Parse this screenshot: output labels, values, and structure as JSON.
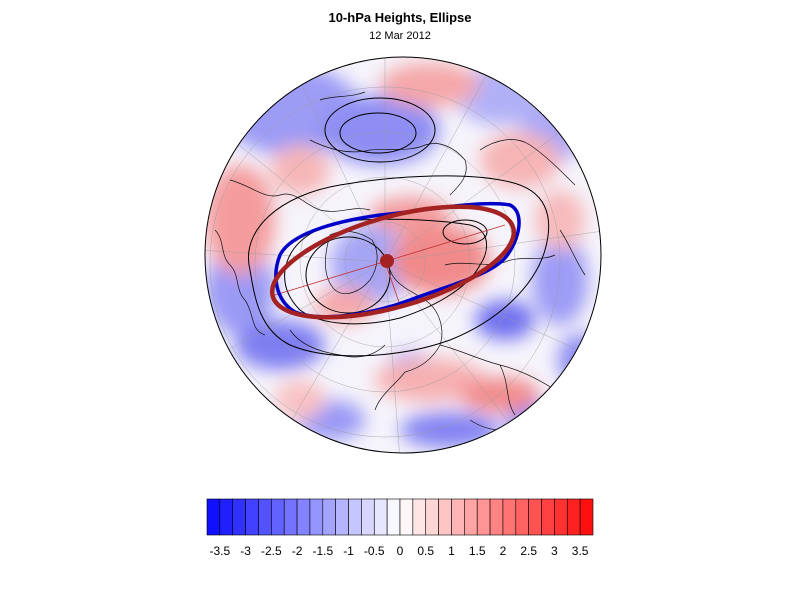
{
  "title": "10-hPa Heights, Ellipse",
  "subtitle": "12 Mar 2012",
  "colors": {
    "negative_max": "#1010ff",
    "positive_max": "#ff1010",
    "ellipse": "#a52222",
    "vortex_edge": "#0000c8",
    "contour": "#000000"
  },
  "colorbar": {
    "min": -3.75,
    "max": 3.75,
    "step": 0.25,
    "tick_labels": [
      "-3.5",
      "-3",
      "-2.5",
      "-2",
      "-1.5",
      "-1",
      "-0.5",
      "0",
      "0.5",
      "1",
      "1.5",
      "2",
      "2.5",
      "3",
      "3.5"
    ]
  }
}
